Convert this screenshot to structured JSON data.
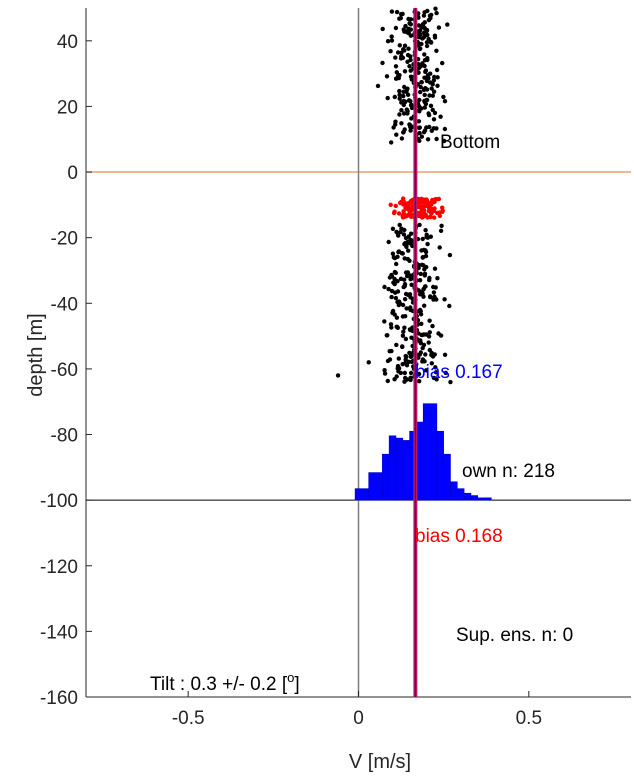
{
  "chart_data": {
    "type": "scatter",
    "xlabel": "V [m/s]",
    "ylabel": "depth [m]",
    "xlim": [
      -0.8,
      0.8
    ],
    "ylim": [
      -160,
      50
    ],
    "xticks": [
      -0.5,
      0,
      0.5
    ],
    "xtick_labels": [
      "-0.5",
      "0",
      "0.5"
    ],
    "yticks": [
      40,
      20,
      0,
      -20,
      -40,
      -60,
      -80,
      -100,
      -120,
      -140,
      -160
    ],
    "ytick_labels": [
      "40",
      "20",
      "0",
      "-20",
      "-40",
      "-60",
      "-80",
      "-100",
      "-120",
      "-140",
      "-160"
    ],
    "reference_lines": {
      "zero_velocity": 0,
      "mean_velocity": 0.167,
      "bottom_depth": 0,
      "histogram_base_depth": -100
    },
    "annotations": {
      "bottom": "Bottom",
      "bias_top": "bias  0.167",
      "own_n": "own n: 218",
      "bias_bottom": "bias  0.168",
      "sup_ens": "Sup. ens. n: 0",
      "tilt": "Tilt : 0.3 +/- 0.2 [",
      "tilt_degree": "o",
      "tilt_close": "]"
    },
    "scatter_groups": [
      {
        "color": "#000000",
        "center_v": 0.17,
        "spread_v": 0.1,
        "depth_range": [
          9,
          50
        ],
        "count": 260
      },
      {
        "color": "#ff0000",
        "center_v": 0.17,
        "spread_v": 0.09,
        "depth_range": [
          -14,
          -8
        ],
        "count": 150
      },
      {
        "color": "#000000",
        "center_v": 0.16,
        "spread_v": 0.1,
        "depth_range": [
          -64,
          -16
        ],
        "count": 300
      }
    ],
    "scatter_outliers": [
      {
        "v": -0.06,
        "depth": -62
      },
      {
        "v": 0.03,
        "depth": -58
      },
      {
        "v": 0.27,
        "depth": -64
      }
    ],
    "histogram": {
      "color": "#0000ff",
      "base_depth": -100,
      "scale_m_per_count": 0.7,
      "bins": [
        {
          "v0": -0.01,
          "v1": 0.03,
          "count": 5
        },
        {
          "v0": 0.03,
          "v1": 0.07,
          "count": 12
        },
        {
          "v0": 0.07,
          "v1": 0.09,
          "count": 20
        },
        {
          "v0": 0.09,
          "v1": 0.11,
          "count": 28
        },
        {
          "v0": 0.11,
          "v1": 0.13,
          "count": 27
        },
        {
          "v0": 0.13,
          "v1": 0.15,
          "count": 26
        },
        {
          "v0": 0.15,
          "v1": 0.17,
          "count": 30
        },
        {
          "v0": 0.17,
          "v1": 0.19,
          "count": 34
        },
        {
          "v0": 0.19,
          "v1": 0.23,
          "count": 42
        },
        {
          "v0": 0.23,
          "v1": 0.25,
          "count": 30
        },
        {
          "v0": 0.25,
          "v1": 0.27,
          "count": 20
        },
        {
          "v0": 0.27,
          "v1": 0.29,
          "count": 8
        },
        {
          "v0": 0.29,
          "v1": 0.31,
          "count": 5
        },
        {
          "v0": 0.31,
          "v1": 0.33,
          "count": 3
        },
        {
          "v0": 0.33,
          "v1": 0.35,
          "count": 2
        },
        {
          "v0": 0.35,
          "v1": 0.39,
          "count": 1
        }
      ]
    }
  },
  "colors": {
    "axis": "#262626",
    "zero_line": "#7f7f7f",
    "mean_line_outer": "#bf1f5b",
    "mean_line_inner": "#6a0080",
    "bottom_line": "#e8a070",
    "hist_base_line": "#000000",
    "bias_top": "#0000ff",
    "bias_bottom": "#ff0000",
    "text": "#000000"
  }
}
